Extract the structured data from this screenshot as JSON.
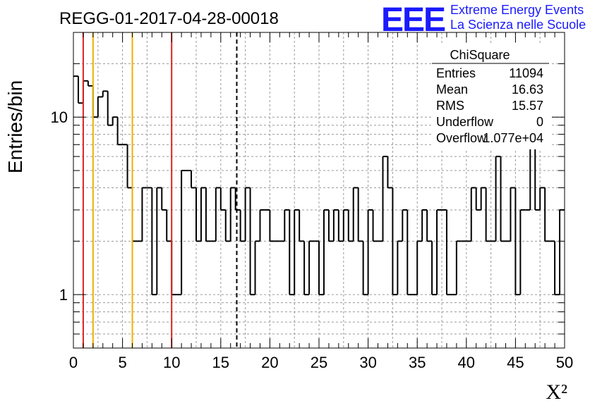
{
  "title": "REGG-01-2017-04-28-00018",
  "logo": {
    "mark": "EEE",
    "line1": "Extreme Energy Events",
    "line2": "La Scienza nelle Scuole"
  },
  "stats": {
    "name": "ChiSquare",
    "rows": [
      {
        "label": "Entries",
        "value": "11094"
      },
      {
        "label": "Mean",
        "value": "16.63"
      },
      {
        "label": "RMS",
        "value": "15.57"
      },
      {
        "label": "Underflow",
        "value": "0"
      },
      {
        "label": "Overflow",
        "value": "1.077e+04"
      }
    ]
  },
  "chart_data": {
    "type": "histogram",
    "xlabel": "X²",
    "ylabel": "Entries/bin",
    "xlim": [
      0,
      50
    ],
    "ylim": [
      0.5,
      30
    ],
    "yscale": "log",
    "bin_width": 0.5,
    "xticks": [
      0,
      5,
      10,
      15,
      20,
      25,
      30,
      35,
      40,
      45,
      50
    ],
    "yticks": [
      {
        "value": 1,
        "label": "1"
      },
      {
        "value": 10,
        "label": "10"
      }
    ],
    "grid": true,
    "counts": [
      17,
      12,
      16,
      15,
      10,
      13,
      14,
      9,
      10,
      7,
      7,
      4,
      2,
      2,
      4,
      4,
      1,
      4,
      3,
      2,
      1,
      1,
      5,
      5,
      4,
      2,
      4,
      2,
      2,
      4,
      3,
      2,
      4,
      3,
      2,
      4,
      1,
      2,
      3,
      3,
      2,
      2,
      2,
      3,
      1,
      3,
      2,
      1,
      2,
      2,
      1,
      3,
      2,
      3,
      2,
      3,
      2,
      4,
      2,
      1,
      3,
      2,
      2,
      6,
      4,
      1,
      2,
      3,
      1,
      1,
      2,
      3,
      2,
      1,
      3,
      3,
      1,
      1,
      2,
      2,
      2,
      4,
      3,
      4,
      2,
      2,
      6,
      2,
      2,
      4,
      1,
      3,
      3,
      8,
      3,
      4,
      2,
      2,
      1,
      3
    ],
    "vlines": [
      {
        "x": 1,
        "color": "#dd2222",
        "style": "solid"
      },
      {
        "x": 2,
        "color": "#f0b000",
        "style": "solid"
      },
      {
        "x": 6,
        "color": "#f0b000",
        "style": "solid"
      },
      {
        "x": 10,
        "color": "#dd2222",
        "style": "solid"
      },
      {
        "x": 16.63,
        "color": "#000000",
        "style": "dashed"
      }
    ]
  }
}
